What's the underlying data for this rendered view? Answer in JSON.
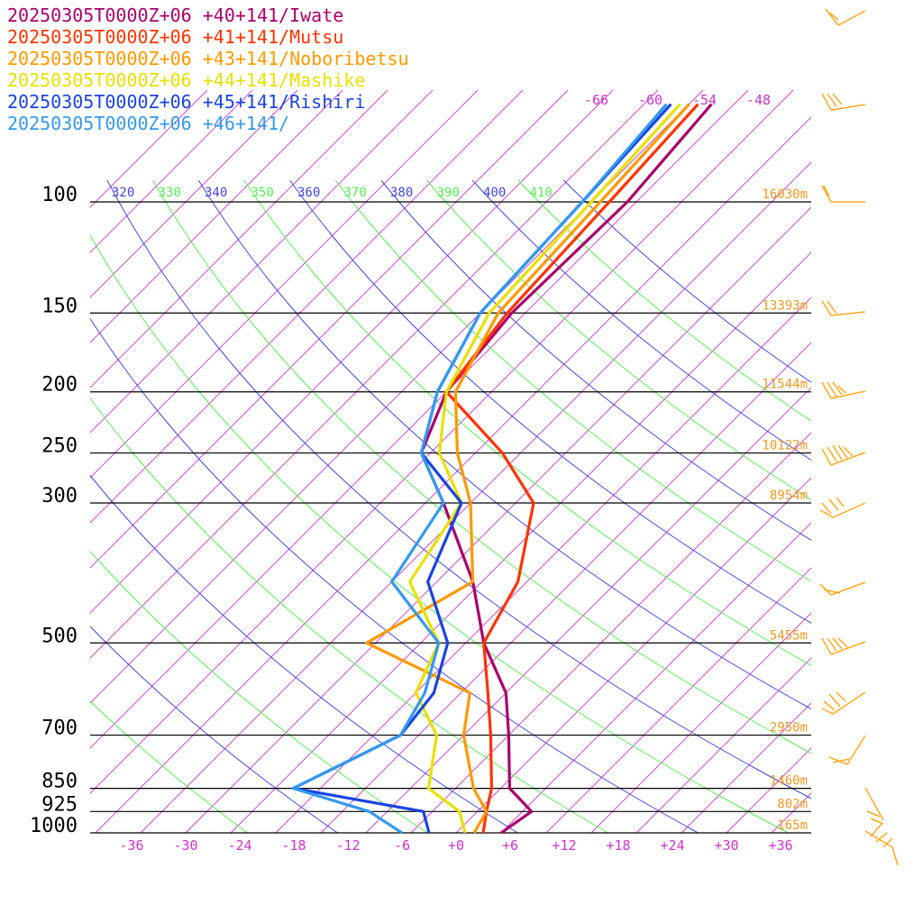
{
  "legend": [
    {
      "label": "20250305T0000Z+06 +40+141/Iwate",
      "color": "#a8006a"
    },
    {
      "label": "20250305T0000Z+06 +41+141/Mutsu",
      "color": "#ff3300"
    },
    {
      "label": "20250305T0000Z+06 +43+141/Noboribetsu",
      "color": "#ff9900"
    },
    {
      "label": "20250305T0000Z+06 +44+141/Mashike",
      "color": "#e8e000"
    },
    {
      "label": "20250305T0000Z+06 +45+141/Rishiri",
      "color": "#1a44e0"
    },
    {
      "label": "20250305T0000Z+06 +46+141/",
      "color": "#3399ee"
    }
  ],
  "chart_data": {
    "type": "line",
    "title": "",
    "xlabel": "",
    "ylabel": "",
    "x_ticks": [
      "-36",
      "-30",
      "-24",
      "-18",
      "-12",
      "-6",
      "+0",
      "+6",
      "+12",
      "+18",
      "+24",
      "+30",
      "+36"
    ],
    "x_tick_values": [
      -36,
      -30,
      -24,
      -18,
      -12,
      -6,
      0,
      6,
      12,
      18,
      24,
      30,
      36
    ],
    "top_isotherm_labels": [
      "-66",
      "-60",
      "-54",
      "-48"
    ],
    "pressure_levels": [
      {
        "label": "100",
        "p": 100,
        "height": "16030m"
      },
      {
        "label": "150",
        "p": 150,
        "height": "13393m"
      },
      {
        "label": "200",
        "p": 200,
        "height": "11544m"
      },
      {
        "label": "250",
        "p": 250,
        "height": "10122m"
      },
      {
        "label": "300",
        "p": 300,
        "height": "8954m"
      },
      {
        "label": "500",
        "p": 500,
        "height": "5455m"
      },
      {
        "label": "700",
        "p": 700,
        "height": "2950m"
      },
      {
        "label": "850",
        "p": 850,
        "height": "1460m"
      },
      {
        "label": "925",
        "p": 925,
        "height": "802m"
      },
      {
        "label": "1000",
        "p": 1000,
        "height": "165m"
      }
    ],
    "theta_labels": [
      "320",
      "330",
      "340",
      "350",
      "360",
      "370",
      "380",
      "390",
      "400",
      "410"
    ],
    "colors": {
      "isotherm": "#cc33cc",
      "theta_blue": "#4444dd",
      "theta_green": "#55ee55",
      "wind": "#ffaa22",
      "height_label": "#ee9922"
    },
    "series": [
      {
        "name": "20250305T0000Z+06 +40+141/Iwate",
        "color": "#a8006a",
        "points": [
          [
            70,
            -52.5
          ],
          [
            100,
            -51
          ],
          [
            150,
            -51.5
          ],
          [
            200,
            -50
          ],
          [
            250,
            -46
          ],
          [
            300,
            -38
          ],
          [
            400,
            -26
          ],
          [
            500,
            -18
          ],
          [
            600,
            -10
          ],
          [
            700,
            -5
          ],
          [
            850,
            1
          ],
          [
            925,
            6
          ],
          [
            1000,
            5
          ]
        ]
      },
      {
        "name": "20250305T0000Z+06 +41+141/Mutsu",
        "color": "#ff3300",
        "points": [
          [
            70,
            -54
          ],
          [
            100,
            -53
          ],
          [
            150,
            -52
          ],
          [
            200,
            -50
          ],
          [
            250,
            -37
          ],
          [
            300,
            -28
          ],
          [
            400,
            -21
          ],
          [
            500,
            -18
          ],
          [
            600,
            -12
          ],
          [
            700,
            -7
          ],
          [
            850,
            -1
          ],
          [
            925,
            1
          ],
          [
            1000,
            3
          ]
        ]
      },
      {
        "name": "20250305T0000Z+06 +43+141/Noboribetsu",
        "color": "#ff9900",
        "points": [
          [
            70,
            -55
          ],
          [
            100,
            -54
          ],
          [
            150,
            -53
          ],
          [
            200,
            -49
          ],
          [
            250,
            -42
          ],
          [
            300,
            -35
          ],
          [
            400,
            -26
          ],
          [
            500,
            -31
          ],
          [
            600,
            -14
          ],
          [
            700,
            -10
          ],
          [
            850,
            -3
          ],
          [
            925,
            1
          ],
          [
            1000,
            2
          ]
        ]
      },
      {
        "name": "20250305T0000Z+06 +44+141/Mashike",
        "color": "#e8e000",
        "points": [
          [
            70,
            -56
          ],
          [
            100,
            -55
          ],
          [
            150,
            -54
          ],
          [
            200,
            -50
          ],
          [
            250,
            -44
          ],
          [
            300,
            -36
          ],
          [
            400,
            -33
          ],
          [
            500,
            -23
          ],
          [
            600,
            -20
          ],
          [
            700,
            -13
          ],
          [
            850,
            -8
          ],
          [
            925,
            -2
          ],
          [
            1000,
            1
          ]
        ]
      },
      {
        "name": "20250305T0000Z+06 +45+141/Rishiri",
        "color": "#1a44e0",
        "points": [
          [
            70,
            -57
          ],
          [
            100,
            -56
          ],
          [
            150,
            -55
          ],
          [
            200,
            -51
          ],
          [
            250,
            -46
          ],
          [
            300,
            -36
          ],
          [
            400,
            -31
          ],
          [
            500,
            -22
          ],
          [
            600,
            -18
          ],
          [
            700,
            -17
          ],
          [
            850,
            -23
          ],
          [
            925,
            -6
          ],
          [
            1000,
            -3
          ]
        ]
      },
      {
        "name": "20250305T0000Z+06 +46+141/",
        "color": "#3399ee",
        "points": [
          [
            70,
            -57.5
          ],
          [
            100,
            -56
          ],
          [
            150,
            -55
          ],
          [
            200,
            -51
          ],
          [
            250,
            -46
          ],
          [
            300,
            -38
          ],
          [
            400,
            -35
          ],
          [
            500,
            -23
          ],
          [
            600,
            -19
          ],
          [
            700,
            -17
          ],
          [
            850,
            -23
          ],
          [
            925,
            -12
          ],
          [
            1000,
            -6
          ]
        ]
      }
    ]
  }
}
